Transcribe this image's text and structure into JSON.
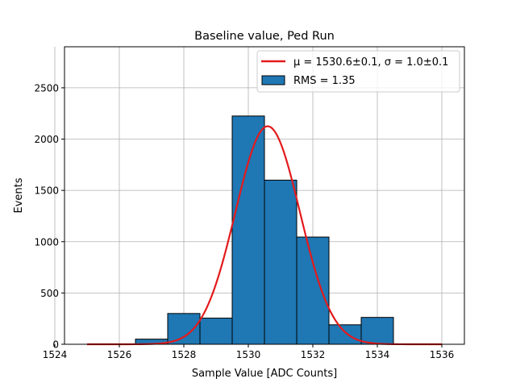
{
  "chart_data": {
    "type": "bar",
    "title": "Baseline value, Ped Run",
    "xlabel": "Sample Value [ADC Counts]",
    "ylabel": "Events",
    "xlim": [
      1524.3,
      1536.7
    ],
    "ylim": [
      0,
      2900
    ],
    "xticks": [
      1524,
      1526,
      1528,
      1530,
      1532,
      1534,
      1536
    ],
    "yticks": [
      0,
      500,
      1000,
      1500,
      2000,
      2500
    ],
    "grid": true,
    "legend_position": "top-right",
    "bins": [
      {
        "left": 1526.5,
        "right": 1527.5,
        "value": 50
      },
      {
        "left": 1527.5,
        "right": 1528.5,
        "value": 300
      },
      {
        "left": 1528.5,
        "right": 1529.5,
        "value": 255
      },
      {
        "left": 1529.5,
        "right": 1530.5,
        "value": 2225
      },
      {
        "left": 1530.5,
        "right": 1531.5,
        "value": 1600
      },
      {
        "left": 1531.5,
        "right": 1532.5,
        "value": 1045
      },
      {
        "left": 1532.5,
        "right": 1533.5,
        "value": 190
      },
      {
        "left": 1533.5,
        "right": 1534.5,
        "value": 262
      }
    ],
    "fit": {
      "mu": 1530.6,
      "sigma": 1.0,
      "amplitude": 2125,
      "x_range": [
        1525,
        1536
      ],
      "label": "μ = 1530.6±0.1, σ = 1.0±0.1"
    },
    "legend": {
      "fit_label": "μ = 1530.6±0.1, σ = 1.0±0.1",
      "hist_label": "RMS = 1.35"
    },
    "colors": {
      "bar_fill": "#1f77b4",
      "bar_edge": "#000000",
      "fit_line": "#e41a1c",
      "grid": "#b0b0b0"
    }
  }
}
